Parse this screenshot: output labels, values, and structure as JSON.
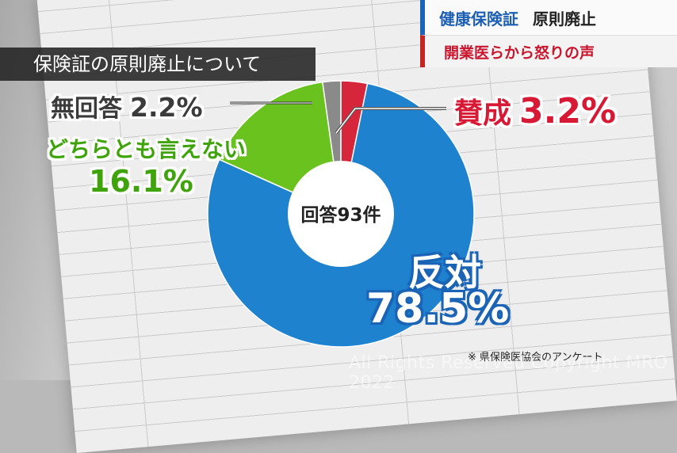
{
  "topic": {
    "line1_a": "健康保険証",
    "line1_b": "原則廃止",
    "line2": "開業医らから怒りの声"
  },
  "title": "保険証の原則廃止について",
  "chart_data": {
    "type": "pie",
    "title": "保険証の原則廃止について",
    "center_label": "回答93件",
    "slices": [
      {
        "label": "賛成",
        "value": 3.2,
        "value_label": "3.2%",
        "color": "#d6263b"
      },
      {
        "label": "反対",
        "value": 78.5,
        "value_label": "78.5%",
        "color": "#1e82cf"
      },
      {
        "label": "どちらとも言えない",
        "value": 16.1,
        "value_label": "16.1%",
        "color": "#69c21d"
      },
      {
        "label": "無回答",
        "value": 2.2,
        "value_label": "2.2%",
        "color": "#8a8a8a"
      }
    ]
  },
  "source": "※ 県保険医協会のアンケート",
  "watermark": "All Rights Reserved Copyright MRO 2022"
}
